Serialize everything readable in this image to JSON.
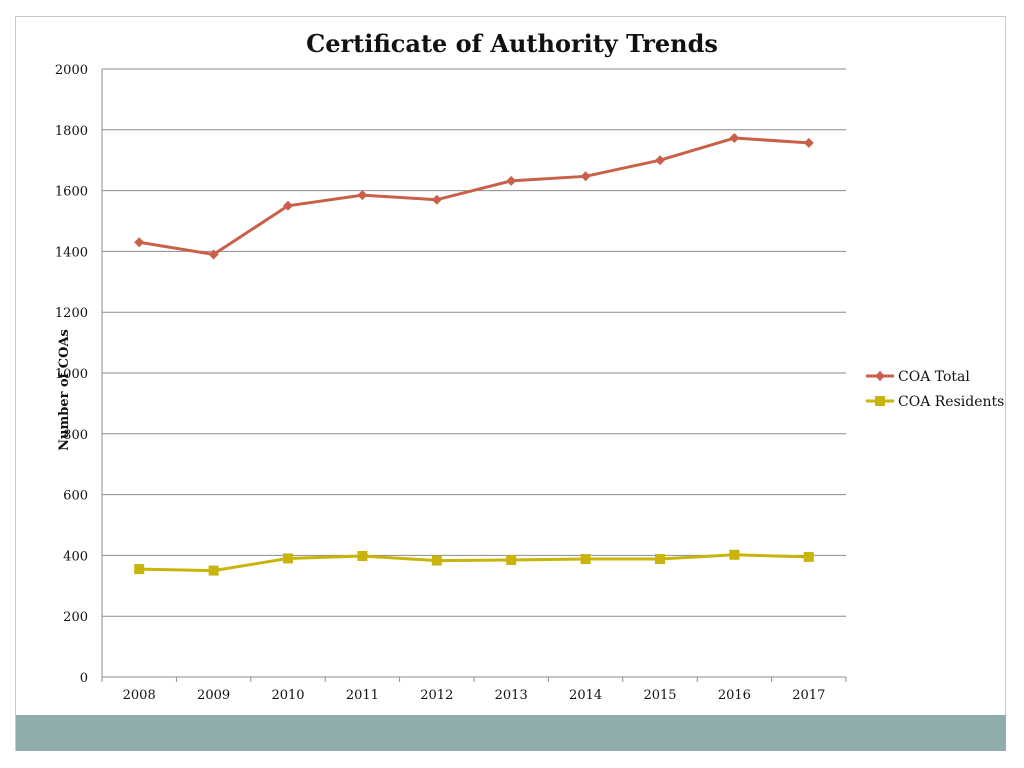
{
  "chart_data": {
    "type": "line",
    "title": "Certificate of Authority Trends",
    "xlabel": "",
    "ylabel": "Number of COAs",
    "categories": [
      "2008",
      "2009",
      "2010",
      "2011",
      "2012",
      "2013",
      "2014",
      "2015",
      "2016",
      "2017"
    ],
    "ylim": [
      0,
      2000
    ],
    "yticks": [
      0,
      200,
      400,
      600,
      800,
      1000,
      1200,
      1400,
      1600,
      1800,
      2000
    ],
    "grid": true,
    "legend_position": "right",
    "series": [
      {
        "name": "COA Total",
        "color": "#c9604a",
        "marker": "diamond",
        "values": [
          1430,
          1390,
          1550,
          1585,
          1570,
          1632,
          1647,
          1700,
          1773,
          1757
        ]
      },
      {
        "name": "COA Residents",
        "color": "#c8b40a",
        "marker": "square",
        "values": [
          355,
          350,
          390,
          398,
          383,
          385,
          388,
          388,
          402,
          395
        ]
      }
    ]
  },
  "colors": {
    "footer_bar": "#8fadad",
    "gridline": "#8c8c8c"
  }
}
